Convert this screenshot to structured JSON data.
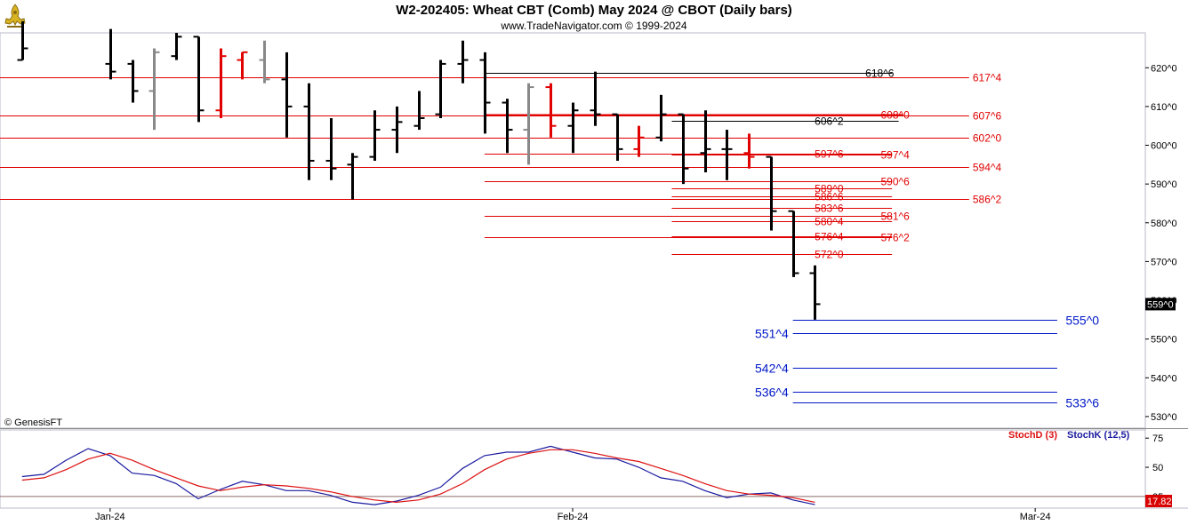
{
  "header": {
    "title": "W2-202405:  Wheat CBT (Comb) May 2024 @ CBOT  (Daily bars)",
    "subtitle": "www.TradeNavigator.com © 1999-2024"
  },
  "copyright": "© GenesisFT",
  "colors": {
    "red": "#e00000",
    "black": "#000000",
    "gray": "#888888",
    "green": "#00bb00",
    "blue": "#0018c8",
    "stochK": "#1a1aa0",
    "stochD": "#dd1111"
  },
  "chart_data": {
    "type": "bar",
    "subtype": "ohlc",
    "price_axis": {
      "ylim": [
        527,
        629
      ],
      "ticks": [
        {
          "v": 620,
          "label": "620^0"
        },
        {
          "v": 610,
          "label": "610^0"
        },
        {
          "v": 600,
          "label": "600^0"
        },
        {
          "v": 590,
          "label": "590^0"
        },
        {
          "v": 580,
          "label": "580^0"
        },
        {
          "v": 570,
          "label": "570^0"
        },
        {
          "v": 560,
          "label": "560^0"
        },
        {
          "v": 550,
          "label": "550^0"
        },
        {
          "v": 540,
          "label": "540^0"
        },
        {
          "v": 530,
          "label": "530^0"
        }
      ],
      "last_price": {
        "v": 559,
        "label": "559^0"
      }
    },
    "x_axis": {
      "months": [
        {
          "label": "Jan-24",
          "i": 4
        },
        {
          "label": "Feb-24",
          "i": 25
        },
        {
          "label": "Mar-24",
          "i": 46
        }
      ],
      "xlim": [
        -1,
        51
      ]
    },
    "bars": [
      {
        "i": 0,
        "o": 622,
        "h": 632,
        "l": 622,
        "c": 625,
        "color": "black"
      },
      {
        "i": 4,
        "o": 621,
        "h": 630,
        "l": 617,
        "c": 619,
        "color": "black"
      },
      {
        "i": 5,
        "o": 621,
        "h": 622,
        "l": 611,
        "c": 614,
        "color": "black"
      },
      {
        "i": 6,
        "o": 614,
        "h": 625,
        "l": 604,
        "c": 624,
        "color": "gray"
      },
      {
        "i": 7,
        "o": 623,
        "h": 629,
        "l": 622,
        "c": 628,
        "color": "black"
      },
      {
        "i": 8,
        "o": 628,
        "h": 628,
        "l": 606,
        "c": 609,
        "color": "black"
      },
      {
        "i": 9,
        "o": 609,
        "h": 625,
        "l": 607,
        "c": 623,
        "color": "red"
      },
      {
        "i": 10,
        "o": 622,
        "h": 624,
        "l": 617,
        "c": 624,
        "color": "red"
      },
      {
        "i": 11,
        "o": 622,
        "h": 627,
        "l": 616,
        "c": 617,
        "color": "gray"
      },
      {
        "i": 12,
        "o": 617,
        "h": 624,
        "l": 602,
        "c": 610,
        "color": "black"
      },
      {
        "i": 13,
        "o": 610,
        "h": 616,
        "l": 591,
        "c": 596,
        "color": "black"
      },
      {
        "i": 14,
        "o": 596,
        "h": 607,
        "l": 591,
        "c": 594,
        "color": "black"
      },
      {
        "i": 15,
        "o": 595,
        "h": 598,
        "l": 586,
        "c": 597,
        "color": "black"
      },
      {
        "i": 16,
        "o": 597,
        "h": 609,
        "l": 596,
        "c": 604,
        "color": "black"
      },
      {
        "i": 17,
        "o": 604,
        "h": 610,
        "l": 598,
        "c": 606,
        "color": "black"
      },
      {
        "i": 18,
        "o": 605,
        "h": 614,
        "l": 604,
        "c": 607,
        "color": "black"
      },
      {
        "i": 19,
        "o": 608,
        "h": 622,
        "l": 607,
        "c": 621,
        "color": "black"
      },
      {
        "i": 20,
        "o": 621,
        "h": 627,
        "l": 616,
        "c": 622,
        "color": "black"
      },
      {
        "i": 21,
        "o": 622,
        "h": 624,
        "l": 603,
        "c": 611,
        "color": "black"
      },
      {
        "i": 22,
        "o": 611,
        "h": 612,
        "l": 598,
        "c": 604,
        "color": "black"
      },
      {
        "i": 23,
        "o": 604,
        "h": 616,
        "l": 595,
        "c": 615,
        "color": "gray"
      },
      {
        "i": 24,
        "o": 615,
        "h": 616,
        "l": 602,
        "c": 605,
        "color": "red"
      },
      {
        "i": 25,
        "o": 605,
        "h": 611,
        "l": 598,
        "c": 609,
        "color": "black"
      },
      {
        "i": 26,
        "o": 609,
        "h": 619,
        "l": 605,
        "c": 608,
        "color": "black"
      },
      {
        "i": 27,
        "o": 608,
        "h": 608,
        "l": 596,
        "c": 599,
        "color": "black"
      },
      {
        "i": 28,
        "o": 599,
        "h": 605,
        "l": 597,
        "c": 602,
        "color": "red"
      },
      {
        "i": 29,
        "o": 602,
        "h": 613,
        "l": 601,
        "c": 608,
        "color": "black"
      },
      {
        "i": 30,
        "o": 608,
        "h": 608,
        "l": 590,
        "c": 594,
        "color": "black"
      },
      {
        "i": 31,
        "o": 598,
        "h": 609,
        "l": 593,
        "c": 599,
        "color": "black"
      },
      {
        "i": 32,
        "o": 599,
        "h": 604,
        "l": 591,
        "c": 599,
        "color": "black"
      },
      {
        "i": 33,
        "o": 598,
        "h": 603,
        "l": 594,
        "c": 597,
        "color": "red"
      },
      {
        "i": 34,
        "o": 597,
        "h": 597,
        "l": 578,
        "c": 583,
        "color": "black"
      },
      {
        "i": 35,
        "o": 583,
        "h": 583,
        "l": 566,
        "c": 567,
        "color": "black"
      },
      {
        "i": 36,
        "o": 567,
        "h": 569,
        "l": 555,
        "c": 559,
        "color": "black"
      }
    ],
    "levels": [
      {
        "v": 618.75,
        "label": "618^6",
        "color": "black",
        "x0": 21,
        "x1": 39.5,
        "label_side": "left",
        "label_x": 39.5
      },
      {
        "v": 617.5,
        "label": "617^4",
        "color": "red",
        "x0": -1,
        "x1": 43,
        "label_side": "right",
        "label_x": 43
      },
      {
        "v": 608,
        "label": "608^0",
        "color": "red",
        "x0": 21,
        "x1": 40,
        "label_side": "left",
        "label_x": 40.2,
        "bold": true
      },
      {
        "v": 607.75,
        "label": "607^6",
        "color": "red",
        "x0": -1,
        "x1": 43,
        "label_side": "right",
        "label_x": 43
      },
      {
        "v": 606.25,
        "label": "606^2",
        "color": "black",
        "x0": 29.5,
        "x1": 39.8,
        "label_side": "left",
        "label_x": 37.2
      },
      {
        "v": 602,
        "label": "602^0",
        "color": "red",
        "x0": -1,
        "x1": 43,
        "label_side": "right",
        "label_x": 43
      },
      {
        "v": 597.75,
        "label": "597^6",
        "color": "red",
        "x0": 21,
        "x1": 39.5,
        "label_side": "left",
        "label_x": 37.2
      },
      {
        "v": 597.5,
        "label": "597^4",
        "color": "red",
        "x0": 29.5,
        "x1": 39.5,
        "label_side": "left",
        "label_x": 40.2
      },
      {
        "v": 594.5,
        "label": "594^4",
        "color": "red",
        "x0": -1,
        "x1": 43,
        "label_side": "right",
        "label_x": 43
      },
      {
        "v": 590.75,
        "label": "590^6",
        "color": "red",
        "x0": 21,
        "x1": 39.5,
        "label_side": "left",
        "label_x": 40.2
      },
      {
        "v": 589,
        "label": "589^0",
        "color": "red",
        "x0": 29.5,
        "x1": 39.5,
        "label_side": "left",
        "label_x": 37.2
      },
      {
        "v": 586.75,
        "label": "586^6",
        "color": "red",
        "x0": 29.5,
        "x1": 39.5,
        "label_side": "left",
        "label_x": 37.2
      },
      {
        "v": 586.25,
        "label": "586^2",
        "color": "red",
        "x0": -1,
        "x1": 43,
        "label_side": "right",
        "label_x": 43
      },
      {
        "v": 583.75,
        "label": "583^6",
        "color": "red",
        "x0": 29.5,
        "x1": 39.5,
        "label_side": "left",
        "label_x": 37.2
      },
      {
        "v": 581.75,
        "label": "581^6",
        "color": "red",
        "x0": 21,
        "x1": 39.5,
        "label_side": "left",
        "label_x": 40.2
      },
      {
        "v": 580.5,
        "label": "580^4",
        "color": "red",
        "x0": 29.5,
        "x1": 39.5,
        "label_side": "left",
        "label_x": 37.2
      },
      {
        "v": 576.5,
        "label": "576^4",
        "color": "red",
        "x0": 29.5,
        "x1": 39.5,
        "label_side": "left",
        "label_x": 37.2
      },
      {
        "v": 576.25,
        "label": "576^2",
        "color": "red",
        "x0": 21,
        "x1": 39.5,
        "label_side": "left",
        "label_x": 40.2
      },
      {
        "v": 572,
        "label": "572^0",
        "color": "red",
        "x0": 29.5,
        "x1": 39.5,
        "label_side": "left",
        "label_x": 37.2
      },
      {
        "v": 555,
        "label": "555^0",
        "color": "blue",
        "x0": 35,
        "x1": 47,
        "label_side": "left",
        "label_x": 47.3
      },
      {
        "v": 551.5,
        "label": "551^4",
        "color": "blue",
        "x0": 35,
        "x1": 47,
        "label_side": "right",
        "label_x": 34.8
      },
      {
        "v": 542.5,
        "label": "542^4",
        "color": "blue",
        "x0": 35,
        "x1": 47,
        "label_side": "right",
        "label_x": 34.8
      },
      {
        "v": 536.5,
        "label": "536^4",
        "color": "blue",
        "x0": 35,
        "x1": 47,
        "label_side": "right",
        "label_x": 34.8
      },
      {
        "v": 533.75,
        "label": "533^6",
        "color": "blue",
        "x0": 35,
        "x1": 47,
        "label_side": "left",
        "label_x": 47.3
      }
    ],
    "stochastic": {
      "ylim": [
        15,
        82
      ],
      "ticks": [
        {
          "v": 75,
          "label": "75"
        },
        {
          "v": 50,
          "label": "50"
        },
        {
          "v": 25,
          "label": "25"
        }
      ],
      "ref_lines": [
        25
      ],
      "last_value": "17.82",
      "legend": [
        {
          "name": "StochD (3)",
          "color": "red"
        },
        {
          "name": "StochK (12,5)",
          "color": "blue"
        }
      ],
      "series": [
        {
          "name": "StochK (12,5)",
          "color": "blue",
          "x": [
            0,
            1,
            2,
            3,
            4,
            5,
            6,
            7,
            8,
            9,
            10,
            11,
            12,
            13,
            14,
            15,
            16,
            17,
            18,
            19,
            20,
            21,
            22,
            23,
            24,
            25,
            26,
            27,
            28,
            29,
            30,
            31,
            32,
            33,
            34,
            35,
            36
          ],
          "values": [
            42,
            44,
            56,
            66,
            60,
            45,
            43,
            36,
            23,
            31,
            38,
            35,
            30,
            30,
            26,
            20,
            18,
            21,
            26,
            33,
            49,
            60,
            63,
            63,
            68,
            63,
            58,
            57,
            50,
            41,
            38,
            30,
            24,
            27,
            28,
            22,
            18
          ]
        },
        {
          "name": "StochD (3)",
          "color": "red",
          "x": [
            0,
            1,
            2,
            3,
            4,
            5,
            6,
            7,
            8,
            9,
            10,
            11,
            12,
            13,
            14,
            15,
            16,
            17,
            18,
            19,
            20,
            21,
            22,
            23,
            24,
            25,
            26,
            27,
            28,
            29,
            30,
            31,
            32,
            33,
            34,
            35,
            36
          ],
          "values": [
            39,
            41,
            48,
            57,
            62,
            56,
            48,
            41,
            34,
            30,
            33,
            35,
            34,
            32,
            29,
            25,
            22,
            20,
            22,
            27,
            36,
            48,
            57,
            62,
            65,
            65,
            62,
            58,
            55,
            49,
            43,
            36,
            30,
            27,
            26,
            24,
            20
          ]
        }
      ]
    }
  }
}
